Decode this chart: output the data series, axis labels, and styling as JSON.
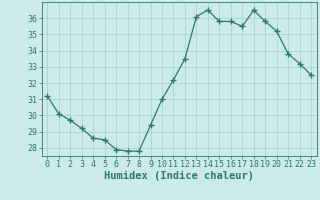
{
  "x": [
    0,
    1,
    2,
    3,
    4,
    5,
    6,
    7,
    8,
    9,
    10,
    11,
    12,
    13,
    14,
    15,
    16,
    17,
    18,
    19,
    20,
    21,
    22,
    23
  ],
  "y": [
    31.2,
    30.1,
    29.7,
    29.2,
    28.6,
    28.5,
    27.9,
    27.8,
    27.8,
    29.4,
    31.0,
    32.2,
    33.5,
    36.1,
    36.5,
    35.8,
    35.8,
    35.5,
    36.5,
    35.8,
    35.2,
    33.8,
    33.2,
    32.5
  ],
  "line_color": "#2d7a6a",
  "marker": "+",
  "marker_size": 4,
  "bg_color": "#cceae7",
  "grid_color": "#aad4d0",
  "xlabel": "Humidex (Indice chaleur)",
  "xlabel_fontsize": 7.5,
  "tick_fontsize": 6,
  "ylim": [
    27.5,
    37.0
  ],
  "xlim": [
    -0.5,
    23.5
  ],
  "yticks": [
    28,
    29,
    30,
    31,
    32,
    33,
    34,
    35,
    36
  ],
  "xticks": [
    0,
    1,
    2,
    3,
    4,
    5,
    6,
    7,
    8,
    9,
    10,
    11,
    12,
    13,
    14,
    15,
    16,
    17,
    18,
    19,
    20,
    21,
    22,
    23
  ]
}
